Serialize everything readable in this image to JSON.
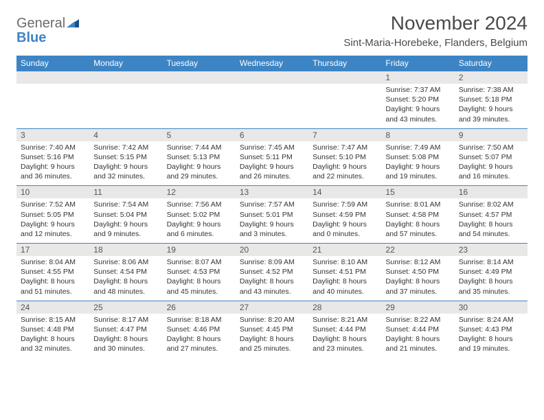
{
  "logo": {
    "general": "General",
    "blue": "Blue"
  },
  "title": "November 2024",
  "subtitle": "Sint-Maria-Horebeke, Flanders, Belgium",
  "colors": {
    "header_bg": "#3d84c4",
    "header_text": "#ffffff",
    "daynum_bg": "#e8e8e8",
    "border": "#3d84c4",
    "logo_gray": "#6b6b6b",
    "logo_blue": "#3d84c4"
  },
  "days_of_week": [
    "Sunday",
    "Monday",
    "Tuesday",
    "Wednesday",
    "Thursday",
    "Friday",
    "Saturday"
  ],
  "weeks": [
    [
      null,
      null,
      null,
      null,
      null,
      {
        "n": "1",
        "sr": "Sunrise: 7:37 AM",
        "ss": "Sunset: 5:20 PM",
        "dl1": "Daylight: 9 hours",
        "dl2": "and 43 minutes."
      },
      {
        "n": "2",
        "sr": "Sunrise: 7:38 AM",
        "ss": "Sunset: 5:18 PM",
        "dl1": "Daylight: 9 hours",
        "dl2": "and 39 minutes."
      }
    ],
    [
      {
        "n": "3",
        "sr": "Sunrise: 7:40 AM",
        "ss": "Sunset: 5:16 PM",
        "dl1": "Daylight: 9 hours",
        "dl2": "and 36 minutes."
      },
      {
        "n": "4",
        "sr": "Sunrise: 7:42 AM",
        "ss": "Sunset: 5:15 PM",
        "dl1": "Daylight: 9 hours",
        "dl2": "and 32 minutes."
      },
      {
        "n": "5",
        "sr": "Sunrise: 7:44 AM",
        "ss": "Sunset: 5:13 PM",
        "dl1": "Daylight: 9 hours",
        "dl2": "and 29 minutes."
      },
      {
        "n": "6",
        "sr": "Sunrise: 7:45 AM",
        "ss": "Sunset: 5:11 PM",
        "dl1": "Daylight: 9 hours",
        "dl2": "and 26 minutes."
      },
      {
        "n": "7",
        "sr": "Sunrise: 7:47 AM",
        "ss": "Sunset: 5:10 PM",
        "dl1": "Daylight: 9 hours",
        "dl2": "and 22 minutes."
      },
      {
        "n": "8",
        "sr": "Sunrise: 7:49 AM",
        "ss": "Sunset: 5:08 PM",
        "dl1": "Daylight: 9 hours",
        "dl2": "and 19 minutes."
      },
      {
        "n": "9",
        "sr": "Sunrise: 7:50 AM",
        "ss": "Sunset: 5:07 PM",
        "dl1": "Daylight: 9 hours",
        "dl2": "and 16 minutes."
      }
    ],
    [
      {
        "n": "10",
        "sr": "Sunrise: 7:52 AM",
        "ss": "Sunset: 5:05 PM",
        "dl1": "Daylight: 9 hours",
        "dl2": "and 12 minutes."
      },
      {
        "n": "11",
        "sr": "Sunrise: 7:54 AM",
        "ss": "Sunset: 5:04 PM",
        "dl1": "Daylight: 9 hours",
        "dl2": "and 9 minutes."
      },
      {
        "n": "12",
        "sr": "Sunrise: 7:56 AM",
        "ss": "Sunset: 5:02 PM",
        "dl1": "Daylight: 9 hours",
        "dl2": "and 6 minutes."
      },
      {
        "n": "13",
        "sr": "Sunrise: 7:57 AM",
        "ss": "Sunset: 5:01 PM",
        "dl1": "Daylight: 9 hours",
        "dl2": "and 3 minutes."
      },
      {
        "n": "14",
        "sr": "Sunrise: 7:59 AM",
        "ss": "Sunset: 4:59 PM",
        "dl1": "Daylight: 9 hours",
        "dl2": "and 0 minutes."
      },
      {
        "n": "15",
        "sr": "Sunrise: 8:01 AM",
        "ss": "Sunset: 4:58 PM",
        "dl1": "Daylight: 8 hours",
        "dl2": "and 57 minutes."
      },
      {
        "n": "16",
        "sr": "Sunrise: 8:02 AM",
        "ss": "Sunset: 4:57 PM",
        "dl1": "Daylight: 8 hours",
        "dl2": "and 54 minutes."
      }
    ],
    [
      {
        "n": "17",
        "sr": "Sunrise: 8:04 AM",
        "ss": "Sunset: 4:55 PM",
        "dl1": "Daylight: 8 hours",
        "dl2": "and 51 minutes."
      },
      {
        "n": "18",
        "sr": "Sunrise: 8:06 AM",
        "ss": "Sunset: 4:54 PM",
        "dl1": "Daylight: 8 hours",
        "dl2": "and 48 minutes."
      },
      {
        "n": "19",
        "sr": "Sunrise: 8:07 AM",
        "ss": "Sunset: 4:53 PM",
        "dl1": "Daylight: 8 hours",
        "dl2": "and 45 minutes."
      },
      {
        "n": "20",
        "sr": "Sunrise: 8:09 AM",
        "ss": "Sunset: 4:52 PM",
        "dl1": "Daylight: 8 hours",
        "dl2": "and 43 minutes."
      },
      {
        "n": "21",
        "sr": "Sunrise: 8:10 AM",
        "ss": "Sunset: 4:51 PM",
        "dl1": "Daylight: 8 hours",
        "dl2": "and 40 minutes."
      },
      {
        "n": "22",
        "sr": "Sunrise: 8:12 AM",
        "ss": "Sunset: 4:50 PM",
        "dl1": "Daylight: 8 hours",
        "dl2": "and 37 minutes."
      },
      {
        "n": "23",
        "sr": "Sunrise: 8:14 AM",
        "ss": "Sunset: 4:49 PM",
        "dl1": "Daylight: 8 hours",
        "dl2": "and 35 minutes."
      }
    ],
    [
      {
        "n": "24",
        "sr": "Sunrise: 8:15 AM",
        "ss": "Sunset: 4:48 PM",
        "dl1": "Daylight: 8 hours",
        "dl2": "and 32 minutes."
      },
      {
        "n": "25",
        "sr": "Sunrise: 8:17 AM",
        "ss": "Sunset: 4:47 PM",
        "dl1": "Daylight: 8 hours",
        "dl2": "and 30 minutes."
      },
      {
        "n": "26",
        "sr": "Sunrise: 8:18 AM",
        "ss": "Sunset: 4:46 PM",
        "dl1": "Daylight: 8 hours",
        "dl2": "and 27 minutes."
      },
      {
        "n": "27",
        "sr": "Sunrise: 8:20 AM",
        "ss": "Sunset: 4:45 PM",
        "dl1": "Daylight: 8 hours",
        "dl2": "and 25 minutes."
      },
      {
        "n": "28",
        "sr": "Sunrise: 8:21 AM",
        "ss": "Sunset: 4:44 PM",
        "dl1": "Daylight: 8 hours",
        "dl2": "and 23 minutes."
      },
      {
        "n": "29",
        "sr": "Sunrise: 8:22 AM",
        "ss": "Sunset: 4:44 PM",
        "dl1": "Daylight: 8 hours",
        "dl2": "and 21 minutes."
      },
      {
        "n": "30",
        "sr": "Sunrise: 8:24 AM",
        "ss": "Sunset: 4:43 PM",
        "dl1": "Daylight: 8 hours",
        "dl2": "and 19 minutes."
      }
    ]
  ]
}
